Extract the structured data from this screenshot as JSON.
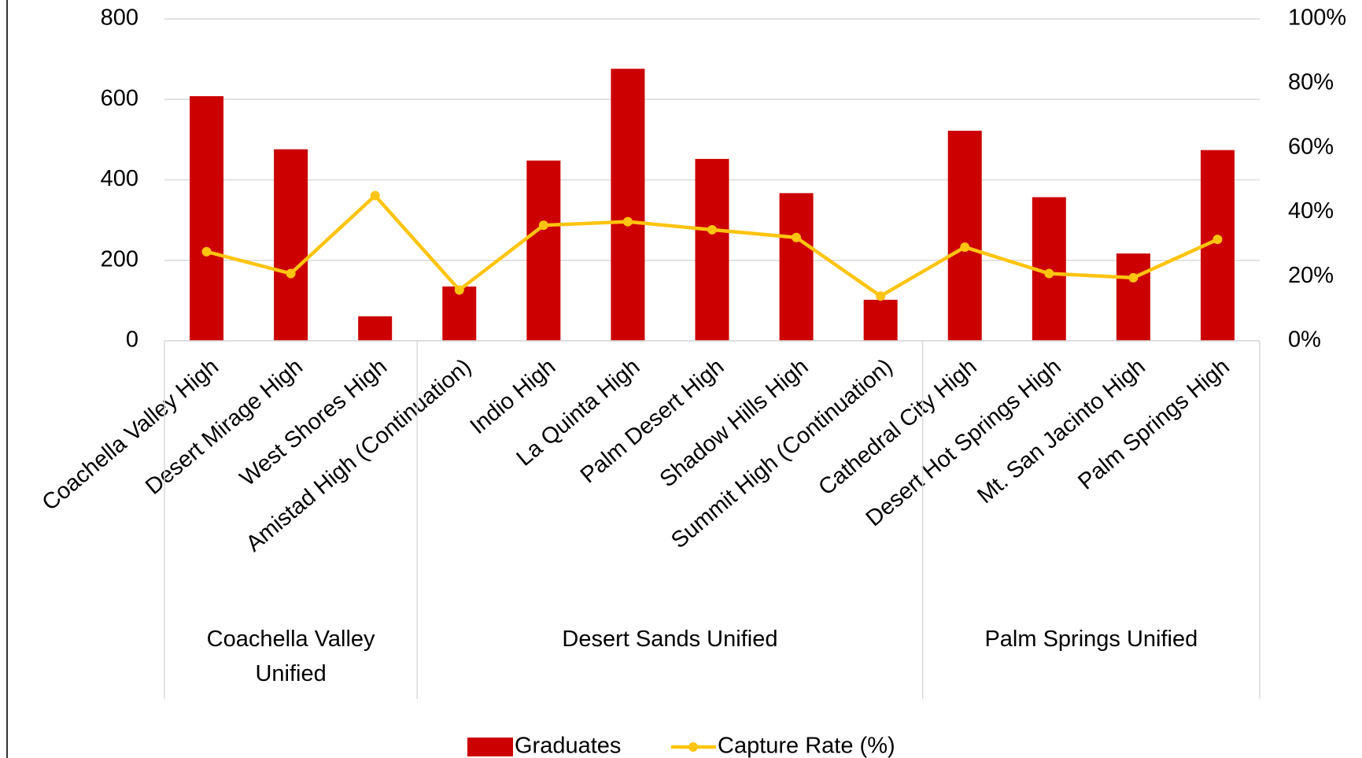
{
  "chart_data": {
    "type": "bar",
    "groups": [
      {
        "name": "Coachella Valley Unified",
        "categories": [
          "Coachella Valley High",
          "Desert Mirage High",
          "West Shores High"
        ]
      },
      {
        "name": "Desert Sands Unified",
        "categories": [
          "Amistad High (Continuation)",
          "Indio High",
          "La Quinta High",
          "Palm Desert High",
          "Shadow Hills High",
          "Summit High (Continuation)"
        ]
      },
      {
        "name": "Palm Springs Unified",
        "categories": [
          "Cathedral City High",
          "Desert Hot Springs High",
          "Mt. San Jacinto High",
          "Palm Springs High"
        ]
      }
    ],
    "series": [
      {
        "name": "Graduates",
        "type": "bar",
        "color": "#cc0000",
        "values": [
          608,
          476,
          61,
          135,
          448,
          676,
          452,
          367,
          102,
          522,
          357,
          217,
          474
        ]
      },
      {
        "name": "Capture Rate (%)",
        "type": "line",
        "axis": "y2",
        "color": "#ffc410",
        "values": [
          27.7,
          20.9,
          45.1,
          15.8,
          35.9,
          37.0,
          34.5,
          32.1,
          13.9,
          29.1,
          20.9,
          19.6,
          31.5
        ]
      }
    ],
    "ylim": [
      0,
      800
    ],
    "yticks": [
      0,
      200,
      400,
      600,
      800
    ],
    "y2lim": [
      0,
      100
    ],
    "y2ticks": [
      {
        "value": 0,
        "label": "0%"
      },
      {
        "value": 20,
        "label": "20%"
      },
      {
        "value": 40,
        "label": "40%"
      },
      {
        "value": 60,
        "label": "60%"
      },
      {
        "value": 80,
        "label": "80%"
      },
      {
        "value": 100,
        "label": "100%"
      }
    ],
    "grid": true,
    "legend": "bottom"
  }
}
